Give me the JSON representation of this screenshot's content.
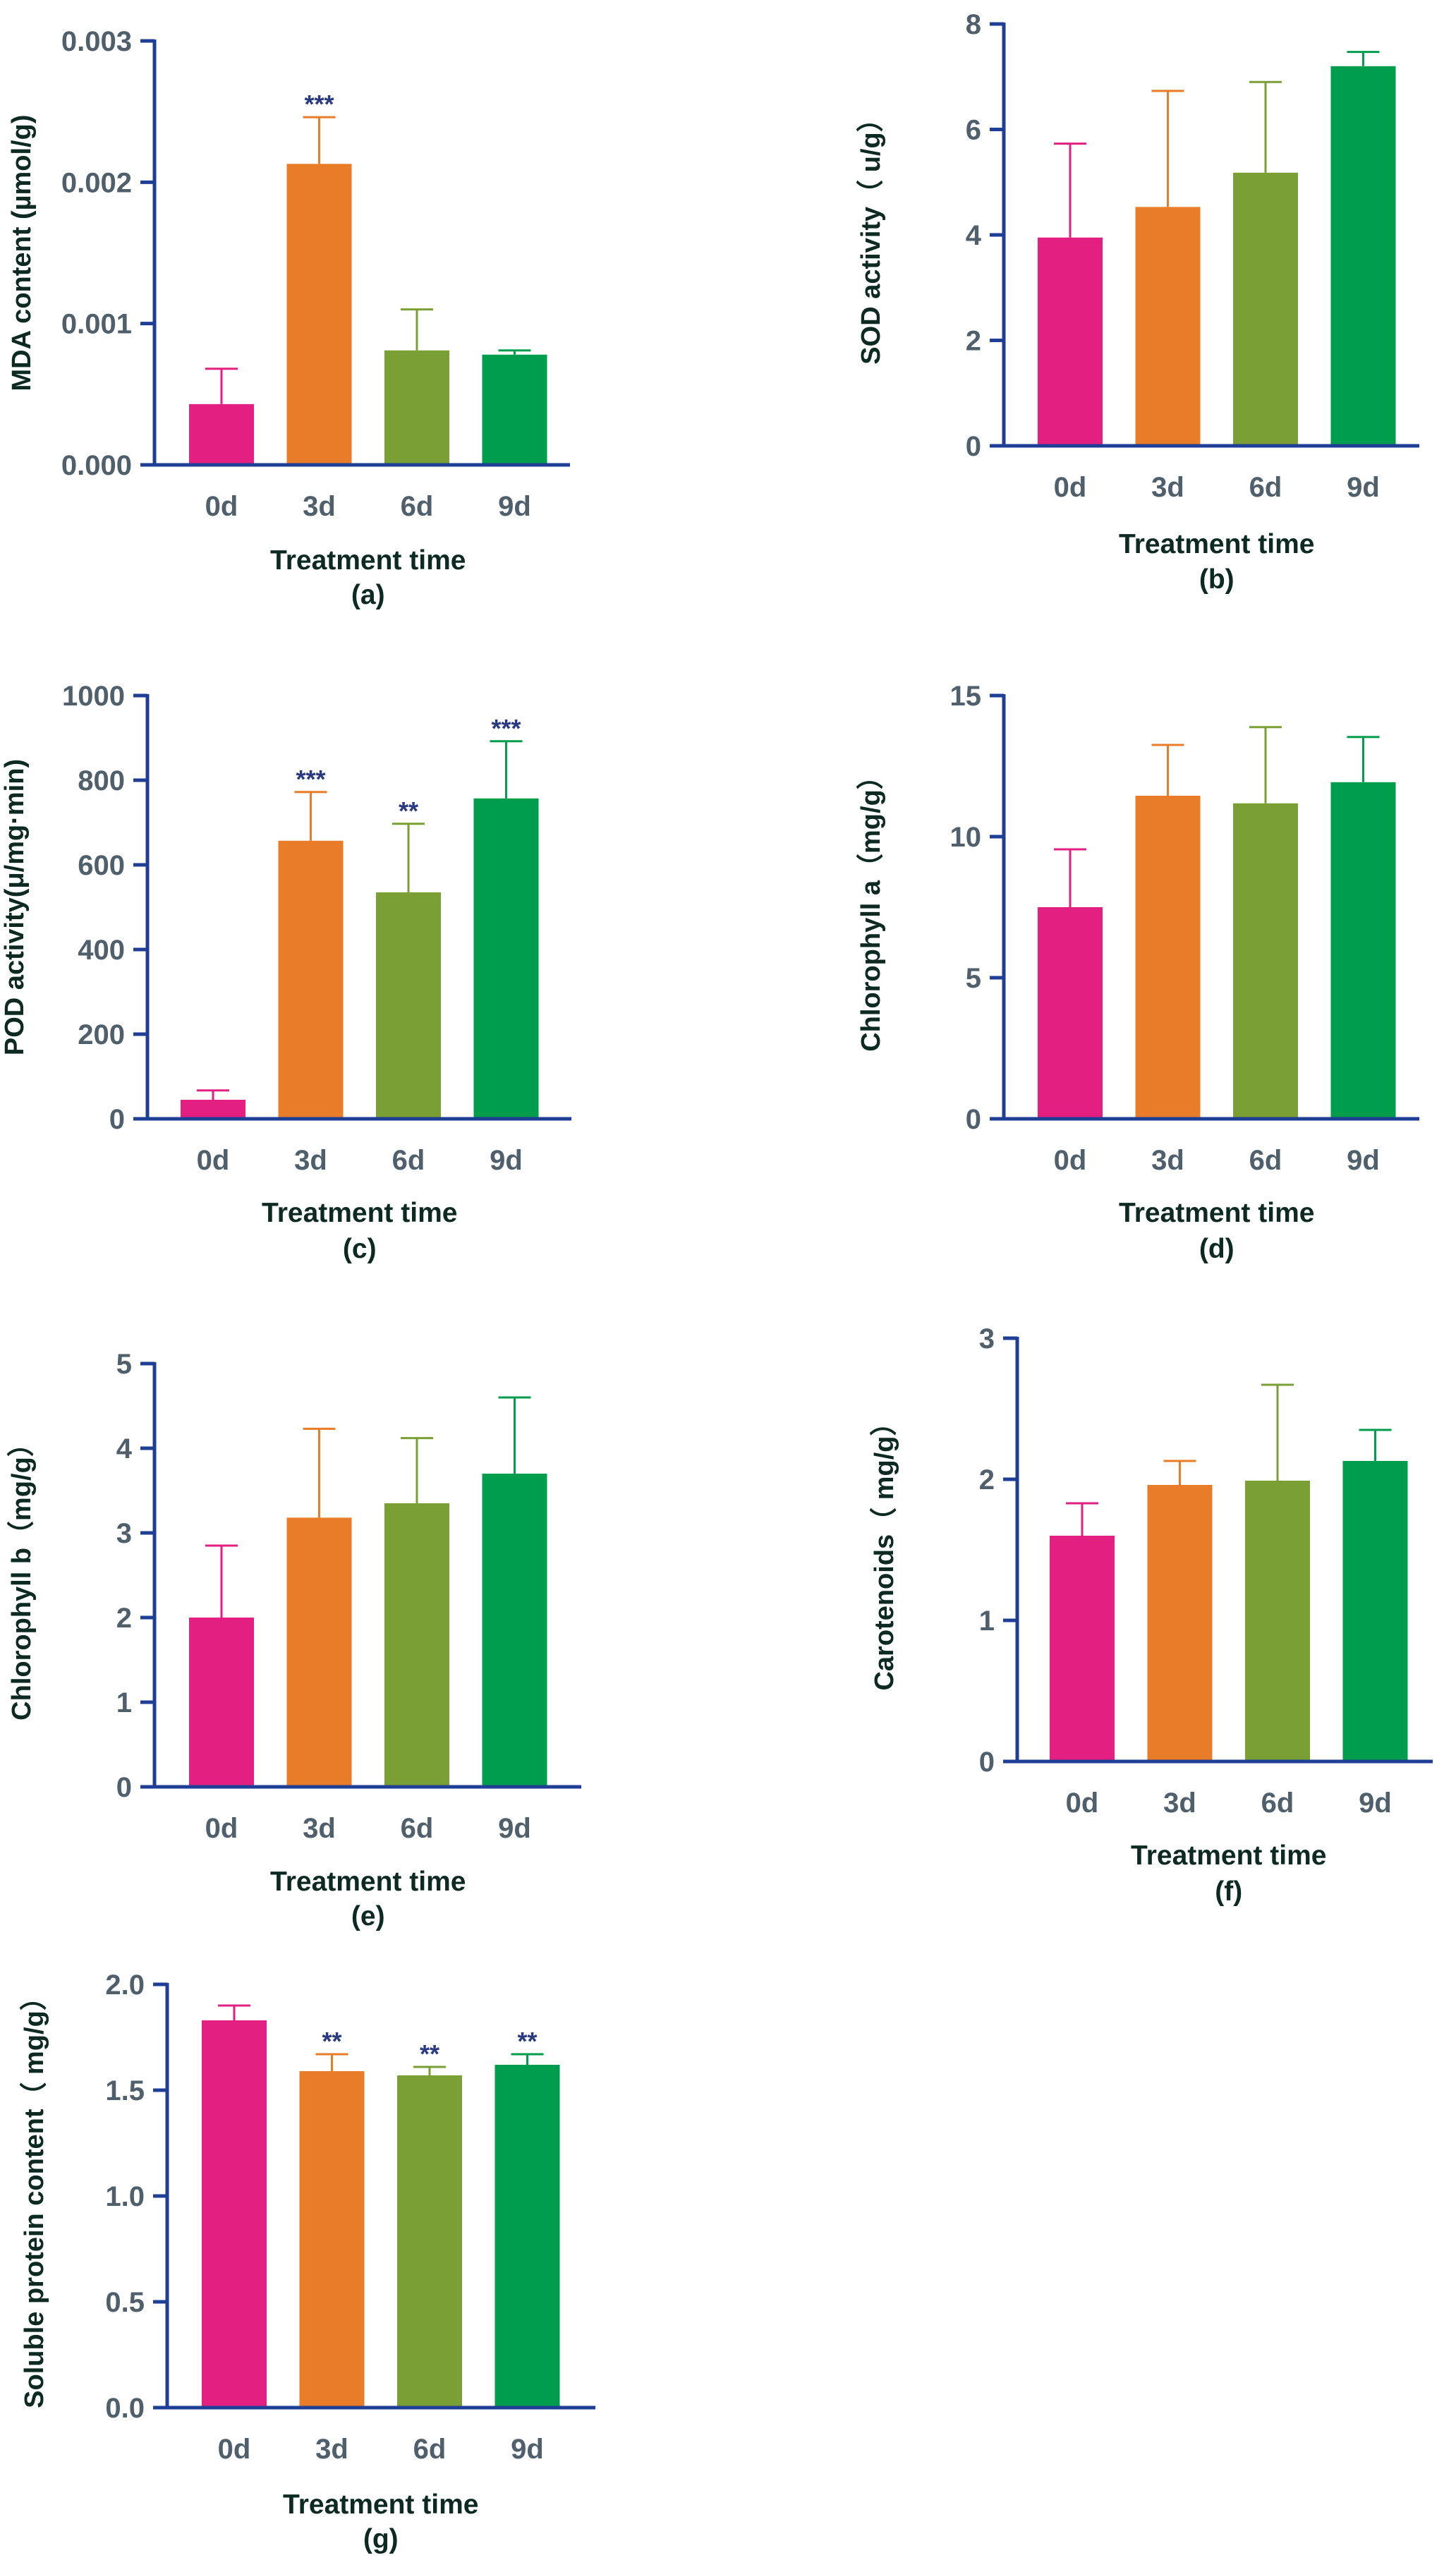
{
  "styles": {
    "axis_color": "#1f3e96",
    "tick_text_color": "#4f5f6b",
    "label_color": "#0d2a22",
    "signif_color": "#2a3a80",
    "bar_colors": [
      "#e31f81",
      "#e87c28",
      "#7a9f34",
      "#009e4c"
    ]
  },
  "chart_data": [
    {
      "id": "a",
      "type": "bar",
      "title": "",
      "categories": [
        "0d",
        "3d",
        "6d",
        "9d"
      ],
      "values": [
        0.00043,
        0.00213,
        0.00081,
        0.00078
      ],
      "errors": [
        0.00025,
        0.00033,
        0.00029,
        3e-05
      ],
      "significance": [
        "",
        "***",
        "",
        ""
      ],
      "ylim": [
        0,
        0.003
      ],
      "yticks": [
        0,
        0.001,
        0.002,
        0.003
      ],
      "ytick_labels": [
        "0.000",
        "0.001",
        "0.002",
        "0.003"
      ],
      "ylabel": "MDA content (µmol/g)",
      "xlabel": "Treatment time",
      "caption": "(a)"
    },
    {
      "id": "b",
      "type": "bar",
      "title": "",
      "categories": [
        "0d",
        "3d",
        "6d",
        "9d"
      ],
      "values": [
        3.95,
        4.53,
        5.18,
        7.2
      ],
      "errors": [
        1.78,
        2.2,
        1.72,
        0.27
      ],
      "significance": [
        "",
        "",
        "",
        ""
      ],
      "ylim": [
        0,
        8
      ],
      "yticks": [
        0,
        2,
        4,
        6,
        8
      ],
      "ytick_labels": [
        "0",
        "2",
        "4",
        "6",
        "8"
      ],
      "ylabel": "SOD activity（ u/g）",
      "xlabel": "Treatment time",
      "caption": "(b)"
    },
    {
      "id": "c",
      "type": "bar",
      "title": "",
      "categories": [
        "0d",
        "3d",
        "6d",
        "9d"
      ],
      "values": [
        45,
        657,
        535,
        757
      ],
      "errors": [
        22,
        115,
        162,
        135
      ],
      "significance": [
        "",
        "***",
        "**",
        "***"
      ],
      "ylim": [
        0,
        1000
      ],
      "yticks": [
        0,
        200,
        400,
        600,
        800,
        1000
      ],
      "ytick_labels": [
        "0",
        "200",
        "400",
        "600",
        "800",
        "1000"
      ],
      "ylabel": "POD activity(μ/mg·min)",
      "xlabel": "Treatment time",
      "caption": "(c)"
    },
    {
      "id": "d",
      "type": "bar",
      "title": "",
      "categories": [
        "0d",
        "3d",
        "6d",
        "9d"
      ],
      "values": [
        7.5,
        11.45,
        11.18,
        11.93
      ],
      "errors": [
        2.05,
        1.8,
        2.7,
        1.6
      ],
      "significance": [
        "",
        "",
        "",
        ""
      ],
      "ylim": [
        0,
        15
      ],
      "yticks": [
        0,
        5,
        10,
        15
      ],
      "ytick_labels": [
        "0",
        "5",
        "10",
        "15"
      ],
      "ylabel": "Chlorophyll a（mg/g）",
      "xlabel": "Treatment time",
      "caption": "(d)"
    },
    {
      "id": "e",
      "type": "bar",
      "title": "",
      "categories": [
        "0d",
        "3d",
        "6d",
        "9d"
      ],
      "values": [
        2.0,
        3.18,
        3.35,
        3.7
      ],
      "errors": [
        0.85,
        1.05,
        0.77,
        0.9
      ],
      "significance": [
        "",
        "",
        "",
        ""
      ],
      "ylim": [
        0,
        5
      ],
      "yticks": [
        0,
        1,
        2,
        3,
        4,
        5
      ],
      "ytick_labels": [
        "0",
        "1",
        "2",
        "3",
        "4",
        "5"
      ],
      "ylabel": "Chlorophyll b（mg/g）",
      "xlabel": "Treatment time",
      "caption": "(e)"
    },
    {
      "id": "f",
      "type": "bar",
      "title": "",
      "categories": [
        "0d",
        "3d",
        "6d",
        "9d"
      ],
      "values": [
        1.6,
        1.96,
        1.99,
        2.13
      ],
      "errors": [
        0.23,
        0.17,
        0.68,
        0.22
      ],
      "significance": [
        "",
        "",
        "",
        ""
      ],
      "ylim": [
        0,
        3
      ],
      "yticks": [
        0,
        1,
        2,
        3
      ],
      "ytick_labels": [
        "0",
        "1",
        "2",
        "3"
      ],
      "ylabel": "Carotenoids（ mg/g）",
      "xlabel": "Treatment time",
      "caption": "(f)"
    },
    {
      "id": "g",
      "type": "bar",
      "title": "",
      "categories": [
        "0d",
        "3d",
        "6d",
        "9d"
      ],
      "values": [
        1.83,
        1.59,
        1.57,
        1.62
      ],
      "errors": [
        0.07,
        0.08,
        0.04,
        0.05
      ],
      "significance": [
        "",
        "**",
        "**",
        "**"
      ],
      "ylim": [
        0,
        2.0
      ],
      "yticks": [
        0,
        0.5,
        1.0,
        1.5,
        2.0
      ],
      "ytick_labels": [
        "0.0",
        "0.5",
        "1.0",
        "1.5",
        "2.0"
      ],
      "ylabel": "Soluble protein content（ mg/g）",
      "xlabel": "Treatment time",
      "caption": "(g)"
    }
  ]
}
